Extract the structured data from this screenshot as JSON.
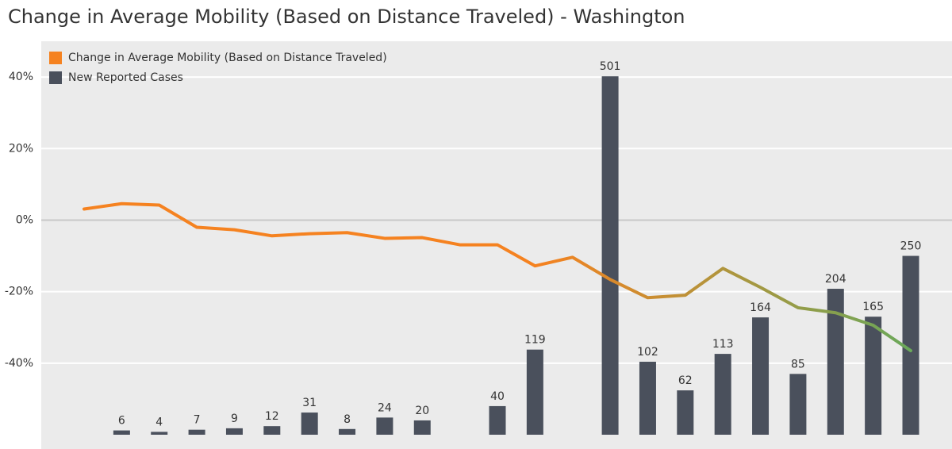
{
  "chart_data": {
    "type": "bar-line",
    "title": "Change in Average Mobility (Based on Distance Traveled) -  Washington",
    "categories": [
      null,
      null,
      null,
      null,
      null,
      null,
      null,
      null,
      null,
      null,
      null,
      null,
      null,
      null,
      null,
      null,
      null,
      null,
      null,
      null,
      null,
      null,
      null
    ],
    "series": [
      {
        "name": "Change in Average Mobility (Based on Distance Traveled)",
        "type": "line",
        "color": "#f58220",
        "color_end": "#6aa85a",
        "values": [
          3.1,
          4.6,
          4.2,
          -2.0,
          -2.7,
          -4.4,
          -3.8,
          -3.5,
          -5.1,
          -4.9,
          -6.9,
          -6.9,
          -12.8,
          -10.4,
          -16.6,
          -21.7,
          -21.0,
          -13.5,
          -18.8,
          -24.5,
          -25.9,
          -29.4,
          -36.5
        ]
      },
      {
        "name": "New Reported Cases",
        "type": "bar",
        "axis": "y2",
        "color": "#4a505c",
        "values": [
          null,
          6,
          4,
          7,
          9,
          12,
          31,
          8,
          24,
          20,
          null,
          40,
          119,
          null,
          501,
          102,
          62,
          113,
          164,
          85,
          204,
          165,
          250
        ]
      }
    ],
    "ylim": [
      -60,
      50
    ],
    "yticks": [
      {
        "value": -40,
        "label": "-40%"
      },
      {
        "value": -20,
        "label": "-20%"
      },
      {
        "value": 0,
        "label": "0%"
      },
      {
        "value": 20,
        "label": "20%"
      },
      {
        "value": 40,
        "label": "40%"
      }
    ],
    "y2lim": [
      0,
      550
    ],
    "grid": true,
    "legend": "top-left"
  }
}
